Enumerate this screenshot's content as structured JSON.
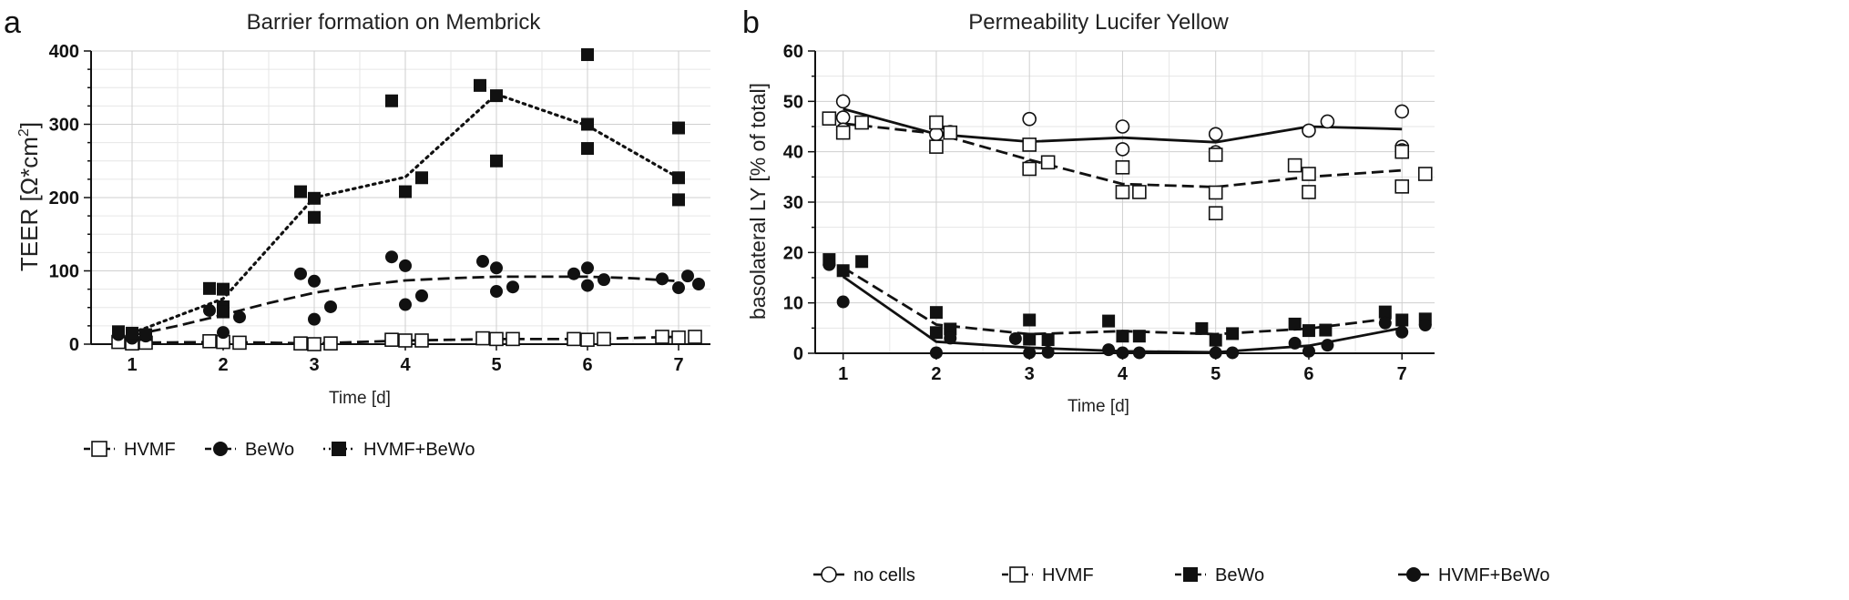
{
  "chart_data": [
    {
      "panel_label": "a",
      "type": "scatter",
      "title": "Barrier formation on Membrick",
      "xlabel": "Time [d]",
      "ylabel_main": "TEER [Ω*cm",
      "ylabel_sup": "2",
      "ylabel_end": "]",
      "xlim": [
        0.55,
        7.35
      ],
      "ylim": [
        0,
        400
      ],
      "xticks": [
        "1",
        "2",
        "3",
        "4",
        "5",
        "6",
        "7"
      ],
      "yticks": [
        "0",
        "100",
        "200",
        "300",
        "400"
      ],
      "grid": true,
      "legend_position": "bottom",
      "series": [
        {
          "name": "HVMF",
          "marker": "open-square",
          "line": "dashed",
          "points": [
            [
              0.85,
              3
            ],
            [
              1.0,
              1
            ],
            [
              1.15,
              2
            ],
            [
              1.85,
              4
            ],
            [
              2.0,
              3
            ],
            [
              2.18,
              2
            ],
            [
              2.85,
              1
            ],
            [
              3.0,
              0
            ],
            [
              3.18,
              1
            ],
            [
              3.85,
              6
            ],
            [
              4.0,
              5
            ],
            [
              4.18,
              5
            ],
            [
              4.85,
              8
            ],
            [
              5.0,
              7
            ],
            [
              5.18,
              7
            ],
            [
              5.85,
              7
            ],
            [
              6.0,
              6
            ],
            [
              6.18,
              7
            ],
            [
              6.82,
              10
            ],
            [
              7.0,
              9
            ],
            [
              7.18,
              10
            ]
          ],
          "fit": [
            [
              1.0,
              2
            ],
            [
              2.0,
              3
            ],
            [
              3.0,
              1
            ],
            [
              4.0,
              5
            ],
            [
              5.0,
              7
            ],
            [
              6.0,
              7
            ],
            [
              7.0,
              10
            ]
          ]
        },
        {
          "name": "BeWo",
          "marker": "filled-circle",
          "line": "dashed",
          "points": [
            [
              0.85,
              13
            ],
            [
              1.0,
              8
            ],
            [
              1.15,
              11
            ],
            [
              1.85,
              46
            ],
            [
              2.0,
              16
            ],
            [
              2.18,
              37
            ],
            [
              2.85,
              96
            ],
            [
              3.0,
              86
            ],
            [
              3.0,
              34
            ],
            [
              3.18,
              51
            ],
            [
              3.85,
              119
            ],
            [
              4.0,
              107
            ],
            [
              4.0,
              54
            ],
            [
              4.18,
              66
            ],
            [
              4.85,
              113
            ],
            [
              5.0,
              104
            ],
            [
              5.0,
              72
            ],
            [
              5.18,
              78
            ],
            [
              5.85,
              96
            ],
            [
              6.0,
              104
            ],
            [
              6.0,
              80
            ],
            [
              6.18,
              88
            ],
            [
              6.82,
              89
            ],
            [
              7.0,
              77
            ],
            [
              7.1,
              93
            ],
            [
              7.22,
              82
            ]
          ],
          "fit": [
            [
              1.0,
              12
            ],
            [
              1.5,
              25
            ],
            [
              2.0,
              40
            ],
            [
              2.5,
              56
            ],
            [
              3.0,
              70
            ],
            [
              3.5,
              80
            ],
            [
              4.0,
              87
            ],
            [
              4.5,
              90
            ],
            [
              5.0,
              92
            ],
            [
              5.5,
              92
            ],
            [
              6.0,
              92
            ],
            [
              6.5,
              90
            ],
            [
              7.0,
              86
            ]
          ]
        },
        {
          "name": "HVMF+BeWo",
          "marker": "filled-square",
          "line": "dotted",
          "points": [
            [
              0.85,
              17
            ],
            [
              1.0,
              15
            ],
            [
              1.15,
              13
            ],
            [
              1.85,
              76
            ],
            [
              2.0,
              75
            ],
            [
              2.0,
              51
            ],
            [
              2.0,
              44
            ],
            [
              2.85,
              208
            ],
            [
              3.0,
              199
            ],
            [
              3.0,
              173
            ],
            [
              3.85,
              332
            ],
            [
              4.0,
              208
            ],
            [
              4.18,
              227
            ],
            [
              4.82,
              353
            ],
            [
              5.0,
              339
            ],
            [
              5.0,
              250
            ],
            [
              6.0,
              395
            ],
            [
              6.0,
              300
            ],
            [
              6.0,
              267
            ],
            [
              7.0,
              295
            ],
            [
              7.0,
              227
            ],
            [
              7.0,
              197
            ]
          ],
          "fit": [
            [
              1.0,
              15
            ],
            [
              2.0,
              62
            ],
            [
              3.0,
              200
            ],
            [
              4.0,
              228
            ],
            [
              5.0,
              341
            ],
            [
              6.0,
              298
            ],
            [
              7.0,
              227
            ]
          ]
        }
      ]
    },
    {
      "panel_label": "b",
      "type": "scatter",
      "title": "Permeability Lucifer Yellow",
      "xlabel": "Time [d]",
      "ylabel": "basolateral LY [% of total]",
      "xlim": [
        0.7,
        7.35
      ],
      "ylim": [
        0,
        60
      ],
      "xticks": [
        "1",
        "2",
        "3",
        "4",
        "5",
        "6",
        "7"
      ],
      "yticks": [
        "0",
        "10",
        "20",
        "30",
        "40",
        "50",
        "60"
      ],
      "grid": true,
      "legend_position": "bottom",
      "series": [
        {
          "name": "no cells",
          "marker": "open-circle",
          "line": "solid",
          "points": [
            [
              1.0,
              50.0
            ],
            [
              1.0,
              46.8
            ],
            [
              1.0,
              44.4
            ],
            [
              2.0,
              43.5
            ],
            [
              2.15,
              43.9
            ],
            [
              3.0,
              46.5
            ],
            [
              3.0,
              37.0
            ],
            [
              4.0,
              45.0
            ],
            [
              4.0,
              40.5
            ],
            [
              5.0,
              43.5
            ],
            [
              5.0,
              39.9
            ],
            [
              6.0,
              44.2
            ],
            [
              6.2,
              46.0
            ],
            [
              7.0,
              48.0
            ],
            [
              7.0,
              41.0
            ],
            [
              7.0,
              40.3
            ]
          ],
          "fit": [
            [
              1.0,
              48.5
            ],
            [
              2.0,
              43.5
            ],
            [
              3.0,
              42.0
            ],
            [
              4.0,
              42.8
            ],
            [
              5.0,
              41.9
            ],
            [
              6.0,
              45.0
            ],
            [
              7.0,
              44.5
            ]
          ]
        },
        {
          "name": "HVMF",
          "marker": "open-square",
          "line": "dashed",
          "points": [
            [
              0.85,
              46.6
            ],
            [
              1.0,
              43.8
            ],
            [
              1.2,
              45.8
            ],
            [
              2.0,
              45.8
            ],
            [
              2.0,
              41.0
            ],
            [
              2.15,
              43.8
            ],
            [
              3.0,
              41.4
            ],
            [
              3.0,
              36.6
            ],
            [
              3.2,
              37.9
            ],
            [
              4.0,
              36.9
            ],
            [
              4.0,
              32.0
            ],
            [
              4.18,
              32.0
            ],
            [
              5.0,
              39.4
            ],
            [
              5.0,
              31.9
            ],
            [
              5.0,
              27.8
            ],
            [
              5.85,
              37.3
            ],
            [
              6.0,
              35.6
            ],
            [
              6.0,
              32.0
            ],
            [
              7.0,
              40.0
            ],
            [
              7.0,
              33.1
            ],
            [
              7.25,
              35.6
            ]
          ],
          "fit": [
            [
              1.0,
              45.6
            ],
            [
              2.0,
              43.6
            ],
            [
              3.0,
              38.4
            ],
            [
              4.0,
              33.6
            ],
            [
              5.0,
              33.0
            ],
            [
              6.0,
              35.0
            ],
            [
              7.0,
              36.3
            ]
          ]
        },
        {
          "name": "BeWo",
          "marker": "filled-square",
          "line": "dashed",
          "points": [
            [
              0.85,
              18.6
            ],
            [
              1.0,
              16.4
            ],
            [
              1.2,
              18.2
            ],
            [
              2.0,
              8.1
            ],
            [
              2.0,
              4.1
            ],
            [
              2.15,
              4.8
            ],
            [
              3.0,
              6.6
            ],
            [
              3.0,
              2.8
            ],
            [
              3.2,
              2.7
            ],
            [
              3.85,
              6.4
            ],
            [
              4.0,
              3.4
            ],
            [
              4.18,
              3.4
            ],
            [
              4.85,
              4.9
            ],
            [
              5.0,
              2.6
            ],
            [
              5.18,
              3.9
            ],
            [
              5.85,
              5.8
            ],
            [
              6.0,
              4.5
            ],
            [
              6.18,
              4.6
            ],
            [
              6.82,
              8.2
            ],
            [
              7.0,
              6.6
            ],
            [
              7.25,
              6.8
            ]
          ],
          "fit": [
            [
              1.0,
              17.0
            ],
            [
              2.0,
              5.7
            ],
            [
              3.0,
              3.8
            ],
            [
              4.0,
              4.4
            ],
            [
              5.0,
              3.8
            ],
            [
              6.0,
              4.9
            ],
            [
              7.0,
              7.2
            ]
          ]
        },
        {
          "name": "HVMF+BeWo",
          "marker": "filled-circle",
          "line": "solid",
          "points": [
            [
              0.85,
              17.6
            ],
            [
              1.0,
              10.2
            ],
            [
              2.0,
              0.1
            ],
            [
              2.15,
              3.0
            ],
            [
              2.85,
              2.9
            ],
            [
              3.0,
              0.1
            ],
            [
              3.2,
              0.2
            ],
            [
              3.85,
              0.7
            ],
            [
              4.0,
              0.1
            ],
            [
              4.18,
              0.1
            ],
            [
              5.0,
              0.1
            ],
            [
              5.18,
              0.1
            ],
            [
              5.85,
              2.0
            ],
            [
              6.0,
              0.4
            ],
            [
              6.2,
              1.6
            ],
            [
              6.82,
              6.0
            ],
            [
              7.0,
              4.2
            ],
            [
              7.25,
              5.6
            ]
          ],
          "fit": [
            [
              1.0,
              15.2
            ],
            [
              2.0,
              2.3
            ],
            [
              3.0,
              1.1
            ],
            [
              4.0,
              0.4
            ],
            [
              5.0,
              0.2
            ],
            [
              6.0,
              1.5
            ],
            [
              7.0,
              5.0
            ]
          ]
        }
      ]
    }
  ]
}
